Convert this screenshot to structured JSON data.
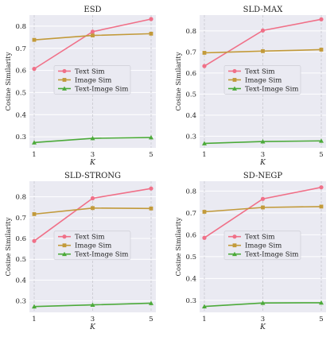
{
  "chart_data": [
    {
      "type": "line",
      "title": "ESD",
      "xlabel": "K",
      "ylabel": "Cosine Similarity",
      "x": [
        1,
        3,
        5
      ],
      "xticks": [
        "1",
        "3",
        "5"
      ],
      "yticks": [
        "0.3",
        "0.4",
        "0.5",
        "0.6",
        "0.7",
        "0.8"
      ],
      "ylim": [
        0.25,
        0.85
      ],
      "grid": true,
      "legend_position": "center",
      "series": [
        {
          "name": "Text Sim",
          "color": "#f07088",
          "marker": "circle",
          "values": [
            0.607,
            0.775,
            0.832
          ]
        },
        {
          "name": "Image Sim",
          "color": "#c29a3a",
          "marker": "square",
          "values": [
            0.738,
            0.758,
            0.766
          ]
        },
        {
          "name": "Text-Image Sim",
          "color": "#4caa3a",
          "marker": "triangle",
          "values": [
            0.274,
            0.293,
            0.297
          ]
        }
      ]
    },
    {
      "type": "line",
      "title": "SLD-MAX",
      "xlabel": "K",
      "ylabel": "Cosine Similarity",
      "x": [
        1,
        3,
        5
      ],
      "xticks": [
        "1",
        "3",
        "5"
      ],
      "yticks": [
        "0.3",
        "0.4",
        "0.5",
        "0.6",
        "0.7",
        "0.8"
      ],
      "ylim": [
        0.245,
        0.875
      ],
      "grid": true,
      "legend_position": "center",
      "series": [
        {
          "name": "Text Sim",
          "color": "#f07088",
          "marker": "circle",
          "values": [
            0.633,
            0.802,
            0.855
          ]
        },
        {
          "name": "Image Sim",
          "color": "#c29a3a",
          "marker": "square",
          "values": [
            0.696,
            0.704,
            0.711
          ]
        },
        {
          "name": "Text-Image Sim",
          "color": "#4caa3a",
          "marker": "triangle",
          "values": [
            0.266,
            0.275,
            0.278
          ]
        }
      ]
    },
    {
      "type": "line",
      "title": "SLD-STRONG",
      "xlabel": "K",
      "ylabel": "Cosine Similarity",
      "x": [
        1,
        3,
        5
      ],
      "xticks": [
        "1",
        "3",
        "5"
      ],
      "yticks": [
        "0.3",
        "0.4",
        "0.5",
        "0.6",
        "0.7",
        "0.8"
      ],
      "ylim": [
        0.245,
        0.875
      ],
      "grid": true,
      "legend_position": "center",
      "series": [
        {
          "name": "Text Sim",
          "color": "#f07088",
          "marker": "circle",
          "values": [
            0.588,
            0.793,
            0.84
          ]
        },
        {
          "name": "Image Sim",
          "color": "#c29a3a",
          "marker": "square",
          "values": [
            0.717,
            0.746,
            0.744
          ]
        },
        {
          "name": "Text-Image Sim",
          "color": "#4caa3a",
          "marker": "triangle",
          "values": [
            0.273,
            0.281,
            0.289
          ]
        }
      ]
    },
    {
      "type": "line",
      "title": "SD-NEGP",
      "xlabel": "K",
      "ylabel": "Cosine Similarity",
      "x": [
        1,
        3,
        5
      ],
      "xticks": [
        "1",
        "3",
        "5"
      ],
      "yticks": [
        "0.3",
        "0.4",
        "0.5",
        "0.6",
        "0.7",
        "0.8"
      ],
      "ylim": [
        0.245,
        0.845
      ],
      "grid": true,
      "legend_position": "center",
      "series": [
        {
          "name": "Text Sim",
          "color": "#f07088",
          "marker": "circle",
          "values": [
            0.586,
            0.764,
            0.817
          ]
        },
        {
          "name": "Image Sim",
          "color": "#c29a3a",
          "marker": "square",
          "values": [
            0.705,
            0.725,
            0.729
          ]
        },
        {
          "name": "Text-Image Sim",
          "color": "#4caa3a",
          "marker": "triangle",
          "values": [
            0.272,
            0.288,
            0.289
          ]
        }
      ]
    }
  ]
}
